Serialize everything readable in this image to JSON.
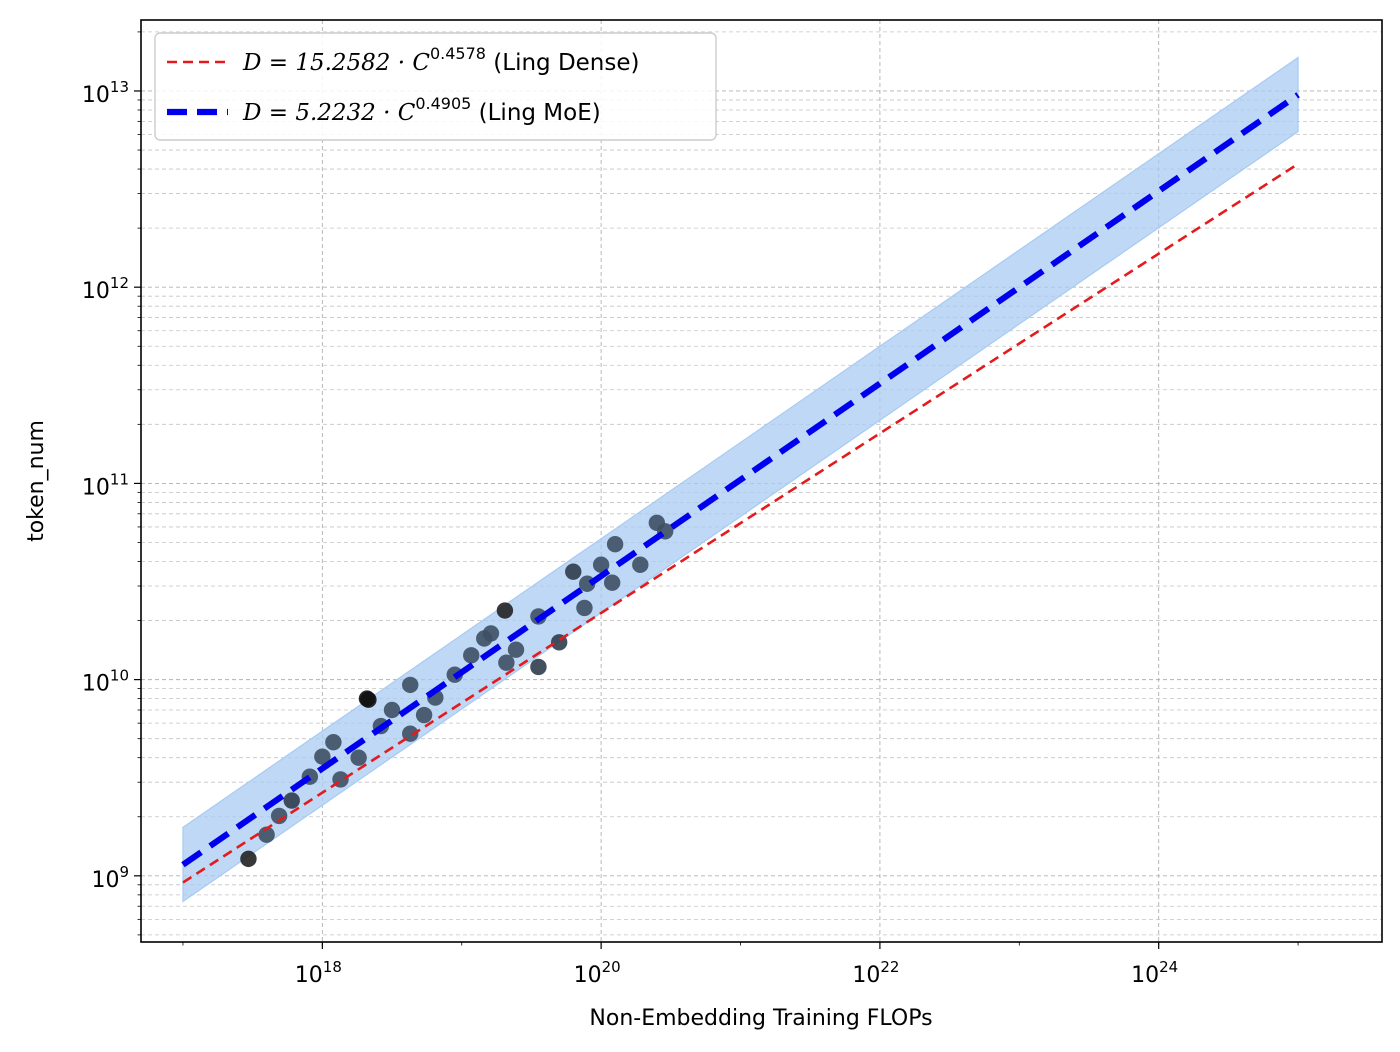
{
  "chart_data": {
    "type": "scatter",
    "xlabel": "Non-Embedding Training FLOPs",
    "ylabel": "token_num",
    "x_scale": "log",
    "y_scale": "log",
    "xlim": [
      5e+16,
      4e+25
    ],
    "ylim": [
      460000000.0,
      23000000000000.0
    ],
    "x_ticks": [
      {
        "value": 1e+18,
        "base": "10",
        "exp": "18"
      },
      {
        "value": 1e+20,
        "base": "10",
        "exp": "20"
      },
      {
        "value": 1e+22,
        "base": "10",
        "exp": "22"
      },
      {
        "value": 1e+24,
        "base": "10",
        "exp": "24"
      }
    ],
    "y_ticks": [
      {
        "value": 1000000000.0,
        "base": "10",
        "exp": "9"
      },
      {
        "value": 10000000000.0,
        "base": "10",
        "exp": "10"
      },
      {
        "value": 100000000000.0,
        "base": "10",
        "exp": "11"
      },
      {
        "value": 1000000000000.0,
        "base": "10",
        "exp": "12"
      },
      {
        "value": 10000000000000.0,
        "base": "10",
        "exp": "13"
      }
    ],
    "grid": true,
    "legend_position": "top-left",
    "fits": [
      {
        "label_math": "D = 15.2582 · C",
        "label_exp": "0.4578",
        "label_text": "(Ling Dense)",
        "coef": 15.2582,
        "exponent": 0.4578,
        "x_range": [
          1e+17,
          1e+25
        ],
        "color": "#e41a1c",
        "style": "dashed"
      },
      {
        "label_math": "D = 5.2232 · C",
        "label_exp": "0.4905",
        "label_text": "(Ling MoE)",
        "coef": 5.2232,
        "exponent": 0.4905,
        "x_range": [
          1e+17,
          1e+25
        ],
        "color": "#0000ee",
        "style": "dashed",
        "band": {
          "lower_factor": 0.65,
          "upper_factor": 1.55,
          "color": "#a8cbf2"
        }
      }
    ],
    "points": [
      {
        "x": 2.95e+17,
        "y": 1220000000.0,
        "shade": "#222222"
      },
      {
        "x": 3.98e+17,
        "y": 1620000000.0,
        "shade": "#3d5064"
      },
      {
        "x": 4.9e+17,
        "y": 2020000000.0,
        "shade": "#3d5064"
      },
      {
        "x": 6.03e+17,
        "y": 2420000000.0,
        "shade": "#2f3d4c"
      },
      {
        "x": 8.13e+17,
        "y": 3200000000.0,
        "shade": "#3d5064"
      },
      {
        "x": 1e+18,
        "y": 4050000000.0,
        "shade": "#3d5064"
      },
      {
        "x": 1.2e+18,
        "y": 4800000000.0,
        "shade": "#3d5064"
      },
      {
        "x": 1.35e+18,
        "y": 3100000000.0,
        "shade": "#3d5064"
      },
      {
        "x": 1.82e+18,
        "y": 4000000000.0,
        "shade": "#3d5064"
      },
      {
        "x": 2.09e+18,
        "y": 8000000000.0,
        "shade": "#111111"
      },
      {
        "x": 2.14e+18,
        "y": 7900000000.0,
        "shade": "#111111"
      },
      {
        "x": 2.63e+18,
        "y": 5800000000.0,
        "shade": "#3d5064"
      },
      {
        "x": 3.16e+18,
        "y": 7000000000.0,
        "shade": "#3d5064"
      },
      {
        "x": 4.27e+18,
        "y": 9400000000.0,
        "shade": "#3d5064"
      },
      {
        "x": 4.27e+18,
        "y": 5300000000.0,
        "shade": "#3d5064"
      },
      {
        "x": 5.37e+18,
        "y": 6600000000.0,
        "shade": "#3d5064"
      },
      {
        "x": 6.46e+18,
        "y": 8100000000.0,
        "shade": "#3d5064"
      },
      {
        "x": 8.91e+18,
        "y": 10600000000.0,
        "shade": "#3d5064"
      },
      {
        "x": 1.17e+19,
        "y": 13300000000.0,
        "shade": "#3d5064"
      },
      {
        "x": 1.45e+19,
        "y": 16200000000.0,
        "shade": "#3d5064"
      },
      {
        "x": 1.62e+19,
        "y": 17200000000.0,
        "shade": "#3d5064"
      },
      {
        "x": 2.04e+19,
        "y": 22500000000.0,
        "shade": "#222222"
      },
      {
        "x": 2.09e+19,
        "y": 12200000000.0,
        "shade": "#3d5064"
      },
      {
        "x": 2.45e+19,
        "y": 14200000000.0,
        "shade": "#3d5064"
      },
      {
        "x": 3.55e+19,
        "y": 21000000000.0,
        "shade": "#3d5064"
      },
      {
        "x": 3.55e+19,
        "y": 11600000000.0,
        "shade": "#2f3d4c"
      },
      {
        "x": 5e+19,
        "y": 15500000000.0,
        "shade": "#2f3d4c"
      },
      {
        "x": 6.31e+19,
        "y": 35500000000.0,
        "shade": "#2f3d4c"
      },
      {
        "x": 7.59e+19,
        "y": 23200000000.0,
        "shade": "#3d5064"
      },
      {
        "x": 7.94e+19,
        "y": 30800000000.0,
        "shade": "#3d5064"
      },
      {
        "x": 1e+20,
        "y": 38500000000.0,
        "shade": "#3d5064"
      },
      {
        "x": 1.2e+20,
        "y": 31200000000.0,
        "shade": "#3d5064"
      },
      {
        "x": 1.26e+20,
        "y": 49000000000.0,
        "shade": "#3d5064"
      },
      {
        "x": 1.91e+20,
        "y": 38500000000.0,
        "shade": "#3d5064"
      },
      {
        "x": 2.51e+20,
        "y": 63000000000.0,
        "shade": "#3d5064"
      },
      {
        "x": 2.88e+20,
        "y": 57000000000.0,
        "shade": "#3d5064"
      }
    ]
  }
}
